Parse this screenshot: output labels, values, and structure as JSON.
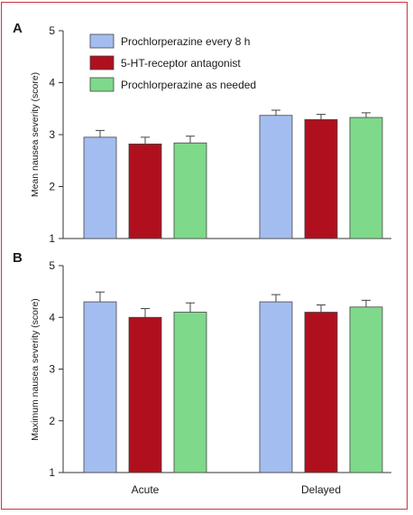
{
  "chart_data": [
    {
      "type": "bar",
      "panel_label": "A",
      "categories": [
        "Acute",
        "Delayed"
      ],
      "ylabel": "Mean nausea severity (score)",
      "ylim": [
        1,
        5
      ],
      "yticks": [
        "1",
        "2",
        "3",
        "4",
        "5"
      ],
      "grid": false,
      "series": [
        {
          "name": "Prochlorperazine every 8 h",
          "color": "#a4bdf0",
          "values": [
            2.95,
            3.37
          ],
          "errors": [
            0.13,
            0.1
          ]
        },
        {
          "name": "5-HT-receptor antagonist",
          "color": "#b0101e",
          "values": [
            2.82,
            3.29
          ],
          "errors": [
            0.13,
            0.1
          ]
        },
        {
          "name": "Prochlorperazine as needed",
          "color": "#7fd98a",
          "values": [
            2.84,
            3.33
          ],
          "errors": [
            0.13,
            0.09
          ]
        }
      ],
      "legend_position": "top-left"
    },
    {
      "type": "bar",
      "panel_label": "B",
      "categories": [
        "Acute",
        "Delayed"
      ],
      "ylabel": "Maximum nausea severity (score)",
      "ylim": [
        1,
        5
      ],
      "yticks": [
        "1",
        "2",
        "3",
        "4",
        "5"
      ],
      "grid": false,
      "series": [
        {
          "name": "Prochlorperazine every 8 h",
          "color": "#a4bdf0",
          "values": [
            4.3,
            4.3
          ],
          "errors": [
            0.19,
            0.14
          ]
        },
        {
          "name": "5-HT-receptor antagonist",
          "color": "#b0101e",
          "values": [
            4.0,
            4.1
          ],
          "errors": [
            0.17,
            0.14
          ]
        },
        {
          "name": "Prochlorperazine as needed",
          "color": "#7fd98a",
          "values": [
            4.1,
            4.2
          ],
          "errors": [
            0.18,
            0.13
          ]
        }
      ]
    }
  ],
  "colors": {
    "frame": "#c9353f",
    "axis": "#333333"
  }
}
